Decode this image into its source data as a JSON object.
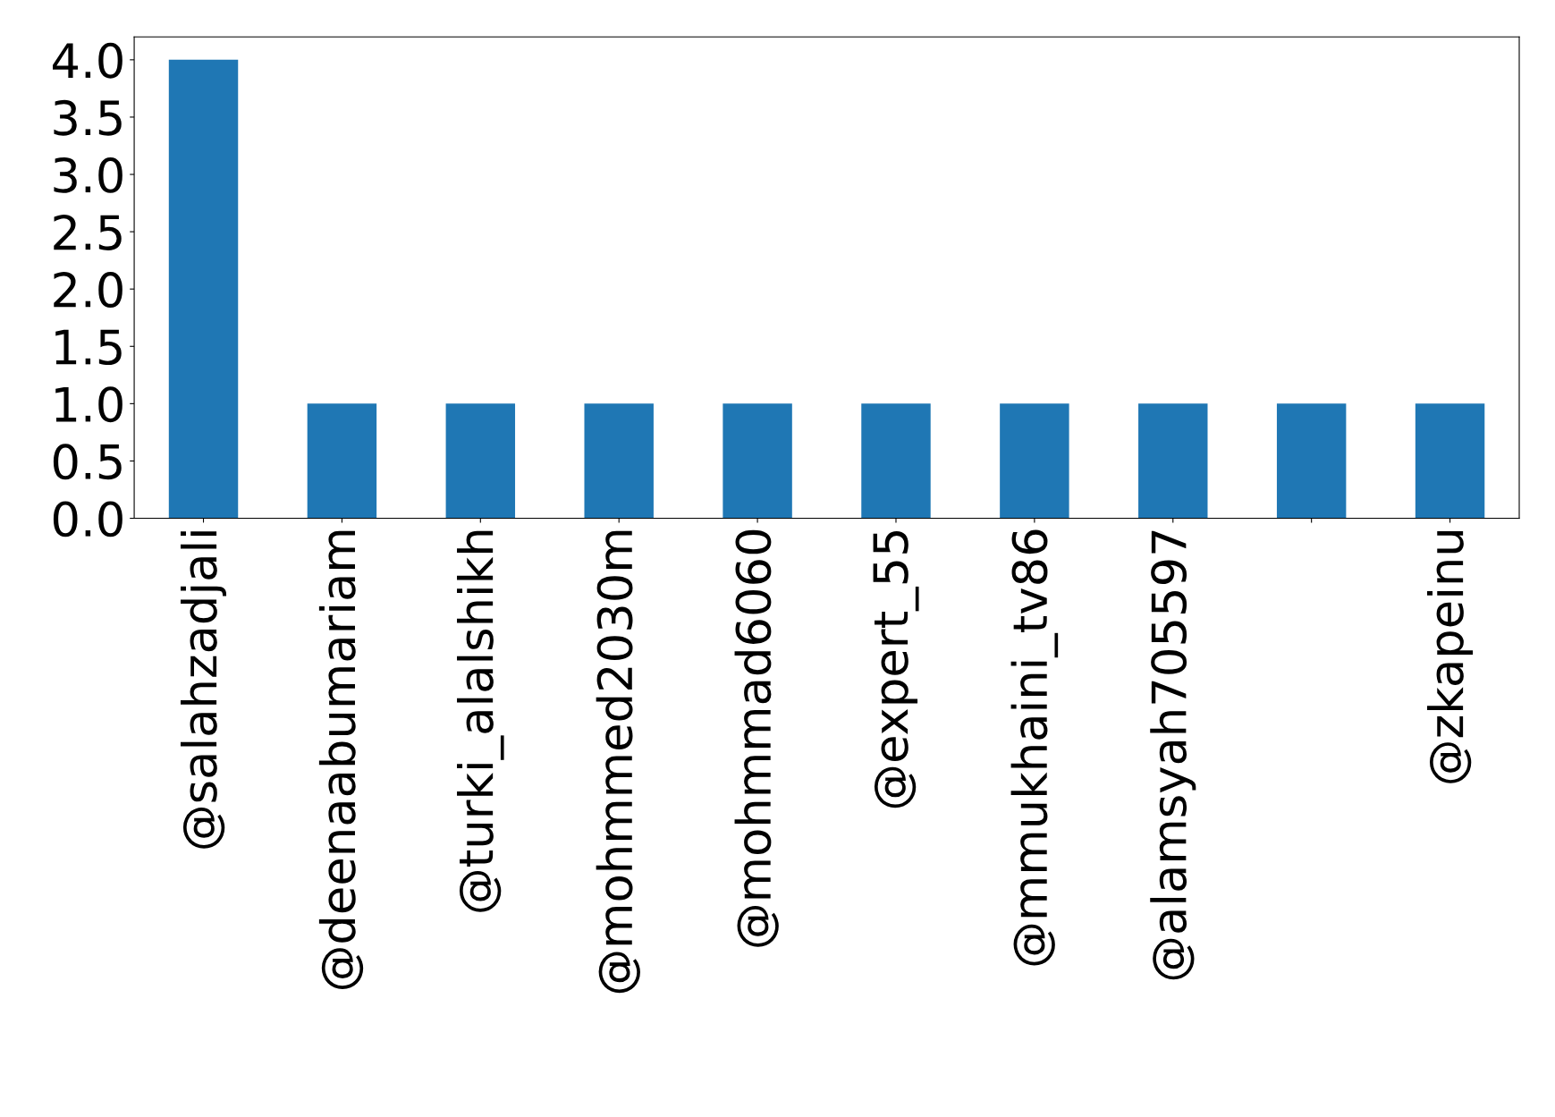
{
  "chart_data": {
    "type": "bar",
    "categories": [
      "@salahzadjali",
      "@deenaabumariam",
      "@turki_alalshikh",
      "@mohmmed2030m",
      "@mohmmad6060",
      "@expert_55",
      "@mmukhaini_tv86",
      "@alamsyah705597",
      null,
      "@zkapeinu"
    ],
    "values": [
      4,
      1,
      1,
      1,
      1,
      1,
      1,
      1,
      1,
      1
    ],
    "color": "#1f77b4",
    "ylim": [
      0,
      4.2
    ],
    "yticks": [
      {
        "value": 0,
        "label": "0.0"
      },
      {
        "value": 0.5,
        "label": "0.5"
      },
      {
        "value": 1,
        "label": "1.0"
      },
      {
        "value": 1.5,
        "label": "1.5"
      },
      {
        "value": 2,
        "label": "2.0"
      },
      {
        "value": 2.5,
        "label": "2.5"
      },
      {
        "value": 3,
        "label": "3.0"
      },
      {
        "value": 3.5,
        "label": "3.5"
      },
      {
        "value": 4,
        "label": "4.0"
      }
    ],
    "grid": false,
    "legend": false
  }
}
